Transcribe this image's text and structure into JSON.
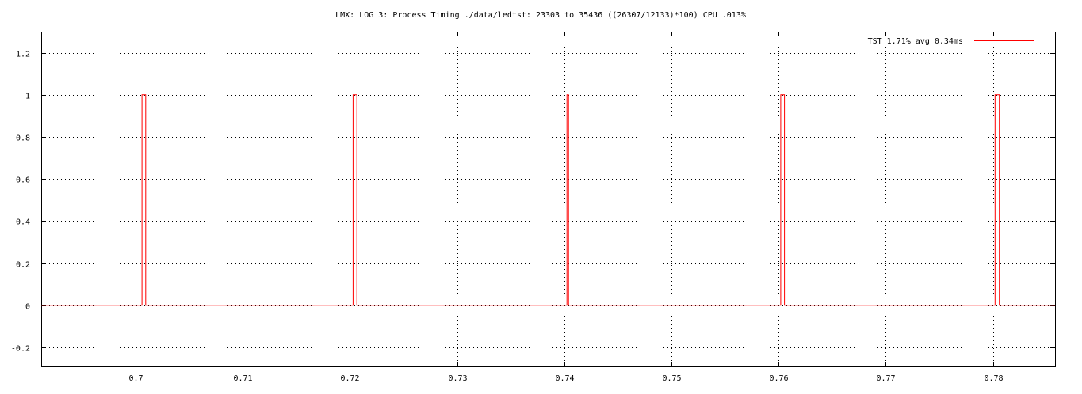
{
  "chart_data": {
    "type": "line",
    "title": "LMX: LOG 3: Process Timing ./data/ledtst: 23303 to 35436 ((26307/12133)*100) CPU .013%",
    "xlabel": "",
    "ylabel": "",
    "xlim": [
      0.6912,
      0.7858
    ],
    "ylim": [
      -0.29,
      1.3
    ],
    "x_ticks": [
      0.7,
      0.71,
      0.72,
      0.73,
      0.74,
      0.75,
      0.76,
      0.77,
      0.78
    ],
    "x_tick_labels": [
      "0.7",
      "0.71",
      "0.72",
      "0.73",
      "0.74",
      "0.75",
      "0.76",
      "0.77",
      "0.78"
    ],
    "y_ticks": [
      -0.2,
      0,
      0.2,
      0.4,
      0.6,
      0.8,
      1,
      1.2
    ],
    "y_tick_labels": [
      "-0.2",
      "0",
      "0.2",
      "0.4",
      "0.6",
      "0.8",
      "1",
      "1.2"
    ],
    "grid": true,
    "legend_position": "top-right",
    "series": [
      {
        "name": "TST 1.71% avg 0.34ms",
        "color": "#ff0000",
        "step": true,
        "x": [
          0.6912,
          0.7006,
          0.7006,
          0.70095,
          0.70095,
          0.7203,
          0.7203,
          0.72065,
          0.72065,
          0.74025,
          0.74025,
          0.7404,
          0.7404,
          0.7602,
          0.7602,
          0.76055,
          0.76055,
          0.7802,
          0.7802,
          0.7806,
          0.7806,
          0.7858
        ],
        "y": [
          0,
          0,
          1,
          1,
          0,
          0,
          1,
          1,
          0,
          0,
          1,
          1,
          0,
          0,
          1,
          1,
          0,
          0,
          1,
          1,
          0,
          0
        ]
      }
    ]
  }
}
